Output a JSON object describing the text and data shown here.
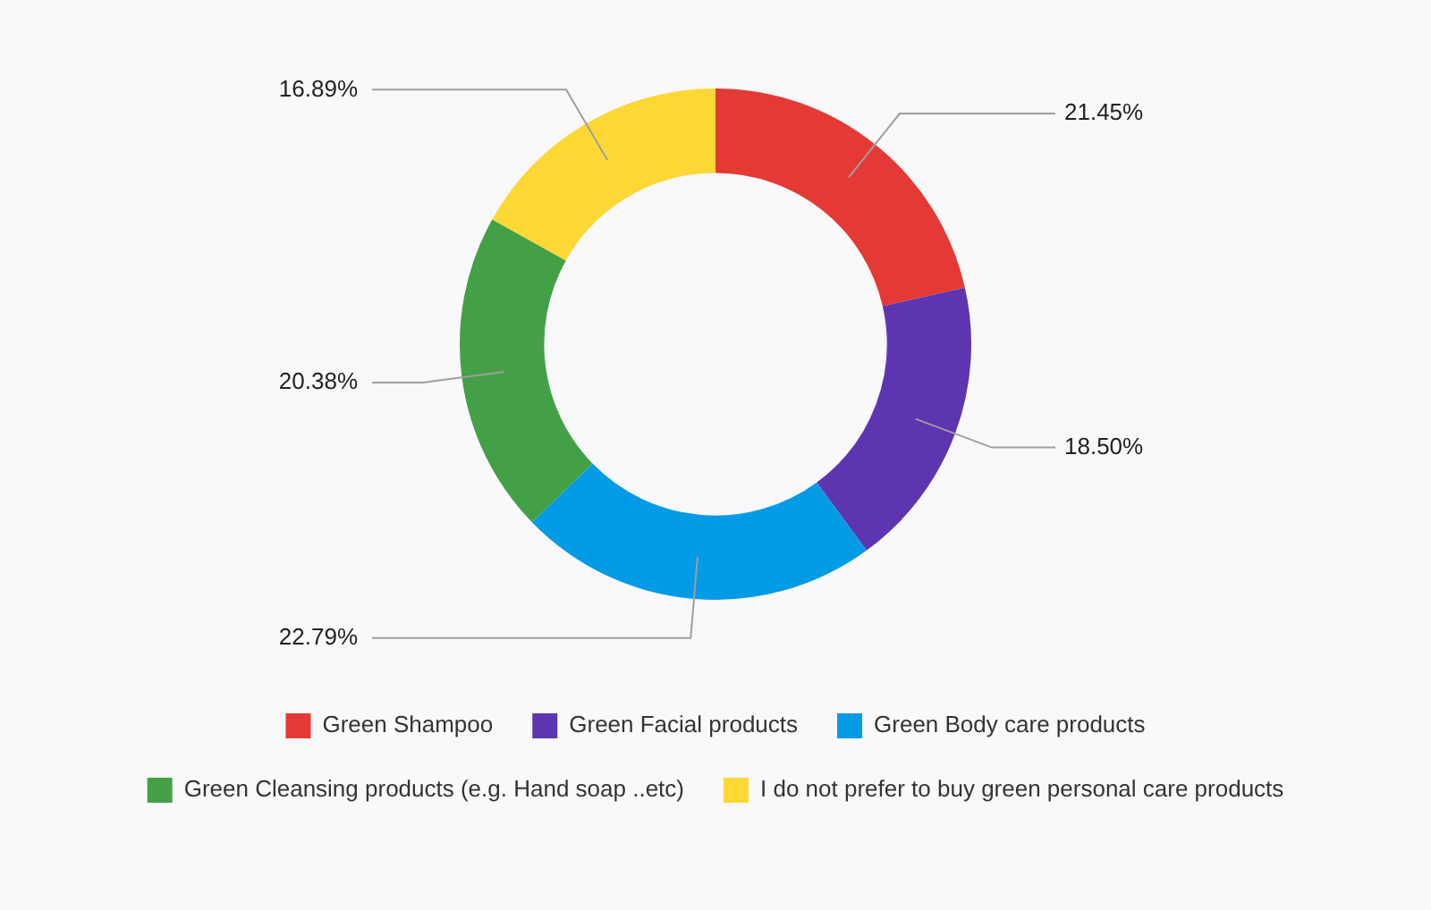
{
  "chart_data": {
    "type": "donut",
    "categories": [
      "Green Shampoo",
      "Green Facial products",
      "Green Body care products",
      "Green Cleansing products (e.g. Hand soap ..etc)",
      "I do not prefer to buy green personal care products"
    ],
    "values": [
      21.45,
      18.5,
      22.79,
      20.38,
      16.89
    ],
    "value_labels": [
      "21.45%",
      "18.50%",
      "22.79%",
      "20.38%",
      "16.89%"
    ],
    "colors": [
      "#e53935",
      "#5e35b1",
      "#039be5",
      "#43a047",
      "#fdd835"
    ],
    "legend": "bottom"
  }
}
